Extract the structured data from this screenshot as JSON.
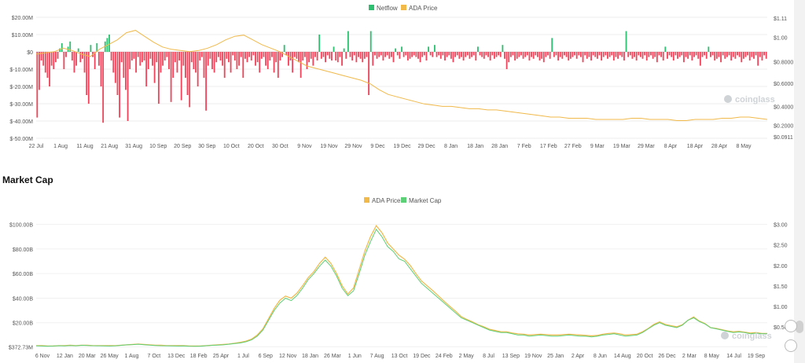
{
  "chart_data": [
    {
      "type": "bar",
      "legend_position": "top-center",
      "series": [
        {
          "name": "Netflow",
          "color": "#2fbf71"
        },
        {
          "name": "ADA Price",
          "color": "#f0b94a"
        }
      ],
      "y_left_ticks": [
        "$20.00M",
        "$10.00M",
        "$0",
        "$-10.00M",
        "$-20.00M",
        "$-30.00M",
        "$-40.00M",
        "$-50.00M"
      ],
      "y_left_range": [
        -50,
        20
      ],
      "y_right_ticks": [
        "$1.11",
        "$1.00",
        "$0.8000",
        "$0.6000",
        "$0.4000",
        "$0.2000",
        "$0.0911"
      ],
      "y_right_range": [
        0.0911,
        1.11
      ],
      "x_ticks": [
        "22 Jul",
        "1 Aug",
        "11 Aug",
        "21 Aug",
        "31 Aug",
        "10 Sep",
        "20 Sep",
        "30 Sep",
        "10 Oct",
        "20 Oct",
        "30 Oct",
        "9 Nov",
        "19 Nov",
        "29 Nov",
        "9 Dec",
        "19 Dec",
        "29 Dec",
        "8 Jan",
        "18 Jan",
        "28 Jan",
        "7 Feb",
        "17 Feb",
        "27 Feb",
        "9 Mar",
        "19 Mar",
        "29 Mar",
        "8 Apr",
        "18 Apr",
        "28 Apr",
        "8 May"
      ],
      "netflow_values_millions": [
        -38,
        -22,
        -5,
        -8,
        -12,
        -15,
        -20,
        -8,
        -10,
        -6,
        -4,
        2,
        5,
        -10,
        -3,
        3,
        6,
        -5,
        -12,
        -8,
        2,
        -6,
        -4,
        -12,
        -25,
        -30,
        4,
        -3,
        -10,
        5,
        -8,
        -20,
        -41,
        6,
        8,
        10,
        -5,
        -12,
        -18,
        -25,
        -38,
        -6,
        -15,
        -22,
        -40,
        -10,
        -5,
        -4,
        -12,
        -3,
        -8,
        -6,
        -5,
        -20,
        -10,
        -4,
        -8,
        -18,
        -6,
        -30,
        -12,
        -8,
        -5,
        -3,
        -10,
        -29,
        -15,
        -6,
        -12,
        -5,
        -28,
        -8,
        -15,
        -25,
        -32,
        -6,
        -10,
        -12,
        -20,
        -5,
        -3,
        -15,
        -34,
        -8,
        -4,
        -10,
        -12,
        -6,
        -3,
        -5,
        -8,
        -15,
        -4,
        -6,
        -12,
        -2,
        -5,
        -10,
        -8,
        -3,
        -15,
        -4,
        -6,
        -3,
        -5,
        -2,
        -8,
        -6,
        -12,
        -4,
        -3,
        -8,
        -10,
        -5,
        -3,
        -12,
        -6,
        -15,
        -5,
        -3,
        4,
        -2,
        -8,
        -5,
        -12,
        -3,
        -4,
        -6,
        -15,
        -5,
        -3,
        -10,
        -6,
        -4,
        -8,
        -3,
        -5,
        10,
        -4,
        -3,
        -6,
        -2,
        -4,
        -5,
        3,
        -5,
        -6,
        -3,
        -8,
        2,
        -4,
        12,
        -3,
        -5,
        -2,
        -6,
        -3,
        -4,
        -6,
        -4,
        -3,
        -25,
        12,
        -8,
        -2,
        -4,
        -3,
        -2,
        -5,
        -3,
        -2,
        -4,
        -3,
        -6,
        2,
        -2,
        -4,
        3,
        -3,
        -2,
        -5,
        -4,
        -3,
        -2,
        -3,
        -4,
        -6,
        -3,
        -2,
        -5,
        3,
        -2,
        -3,
        4,
        -3,
        -2,
        -4,
        -2,
        -5,
        -3,
        -2,
        -4,
        -6,
        -3,
        -2,
        -4,
        -3,
        -5,
        -3,
        -2,
        -4,
        -3,
        -2,
        -5,
        3,
        -2,
        -3,
        -4,
        -2,
        -3,
        -5,
        -2,
        -4,
        -3,
        -2,
        -3,
        4,
        -4,
        -10,
        -6,
        -3,
        -2,
        -5,
        -4,
        -3,
        -2,
        -4,
        -3,
        -2,
        -5,
        -3,
        -4,
        -2,
        -3,
        -5,
        -4,
        -6,
        -3,
        -2,
        -4,
        8,
        -3,
        -2,
        -5,
        -3,
        -4,
        -2,
        -3,
        -5,
        -4,
        -3,
        -2,
        -4,
        -2,
        -3,
        -6,
        -2,
        -4,
        -3,
        -5,
        -2,
        -3,
        -4,
        -2,
        -5,
        -3,
        -2,
        -4,
        -3,
        -2,
        -5,
        -3,
        -4,
        -2,
        -3,
        -5,
        12,
        -3,
        -2,
        -4,
        -3,
        -5,
        -2,
        -3,
        -4,
        -2,
        -5,
        -3,
        -2,
        -4,
        -3,
        -6,
        -2,
        -3,
        -5,
        3,
        -4,
        -2,
        -3,
        -5,
        -2,
        -4,
        -3,
        -2,
        -6,
        -3,
        -4,
        -2,
        -5,
        -3,
        -2,
        -4,
        -8,
        -3,
        -2,
        -4,
        3,
        -3,
        -2,
        -5,
        -4,
        -3,
        -6,
        -2,
        -4,
        -3,
        -2,
        -5,
        -3,
        -4,
        -2,
        -3,
        -6,
        -4,
        -3,
        -2,
        -5,
        -3,
        -4,
        -2,
        -8,
        -3,
        -5,
        -2,
        -4
      ],
      "price_values": [
        0.8,
        0.81,
        0.82,
        0.85,
        0.83,
        0.8,
        0.78,
        0.84,
        0.88,
        0.92,
        0.98,
        1.0,
        0.95,
        0.9,
        0.86,
        0.84,
        0.83,
        0.82,
        0.83,
        0.85,
        0.88,
        0.92,
        0.95,
        0.96,
        0.92,
        0.88,
        0.85,
        0.82,
        0.78,
        0.74,
        0.7,
        0.68,
        0.66,
        0.64,
        0.62,
        0.6,
        0.58,
        0.55,
        0.5,
        0.46,
        0.44,
        0.42,
        0.4,
        0.38,
        0.37,
        0.36,
        0.36,
        0.35,
        0.34,
        0.34,
        0.33,
        0.33,
        0.32,
        0.31,
        0.3,
        0.29,
        0.28,
        0.27,
        0.27,
        0.26,
        0.26,
        0.26,
        0.25,
        0.25,
        0.25,
        0.25,
        0.26,
        0.26,
        0.25,
        0.25,
        0.25,
        0.24,
        0.24,
        0.25,
        0.25,
        0.25,
        0.26,
        0.26,
        0.27,
        0.27,
        0.26,
        0.25
      ],
      "watermark": "coinglass"
    },
    {
      "type": "line",
      "title": "Market Cap",
      "legend_position": "top-center",
      "series": [
        {
          "name": "ADA Price",
          "color": "#f0b94a"
        },
        {
          "name": "Market Cap",
          "color": "#5ccf77"
        }
      ],
      "y_left_ticks": [
        "$100.00B",
        "$80.00B",
        "$60.00B",
        "$40.00B",
        "$20.00B",
        "$372.73M"
      ],
      "y_left_range": [
        0.37273,
        100
      ],
      "y_right_ticks": [
        "$3.00",
        "$2.50",
        "$2.00",
        "$1.50",
        "$1.00",
        "$0.50"
      ],
      "y_right_range": [
        0,
        3.0
      ],
      "x_ticks": [
        "6 Nov",
        "12 Jan",
        "20 Mar",
        "26 May",
        "1 Aug",
        "7 Oct",
        "13 Dec",
        "18 Feb",
        "25 Apr",
        "1 Jul",
        "6 Sep",
        "12 Nov",
        "18 Jan",
        "26 Mar",
        "1 Jun",
        "7 Aug",
        "13 Oct",
        "19 Dec",
        "24 Feb",
        "2 May",
        "8 Jul",
        "13 Sep",
        "19 Nov",
        "25 Jan",
        "2 Apr",
        "8 Jun",
        "14 Aug",
        "20 Oct",
        "26 Dec",
        "2 Mar",
        "8 May",
        "14 Jul",
        "19 Sep"
      ],
      "market_cap_values_billions": [
        1.2,
        1.0,
        0.9,
        1.0,
        1.3,
        1.1,
        1.4,
        1.2,
        1.6,
        1.5,
        1.3,
        1.2,
        1.1,
        1.0,
        1.2,
        1.6,
        2.0,
        2.2,
        2.5,
        2.1,
        1.7,
        1.5,
        1.3,
        1.2,
        1.1,
        1.0,
        1.1,
        0.9,
        0.8,
        0.9,
        1.3,
        1.6,
        1.8,
        2.0,
        2.5,
        3.0,
        3.5,
        4.5,
        6.0,
        9,
        14,
        22,
        30,
        36,
        40,
        38,
        42,
        48,
        55,
        60,
        66,
        71,
        66,
        58,
        48,
        42,
        46,
        60,
        75,
        86,
        96,
        90,
        82,
        78,
        72,
        70,
        64,
        58,
        52,
        48,
        44,
        40,
        36,
        32,
        28,
        24,
        22,
        20,
        18,
        16,
        14,
        13,
        12,
        12,
        11,
        10,
        10,
        9,
        9.5,
        10,
        9.5,
        9,
        9,
        9.5,
        10,
        9.5,
        9,
        9,
        8.5,
        9,
        10,
        10.5,
        11,
        10,
        9,
        9.5,
        10,
        12,
        15,
        18,
        20,
        18,
        17,
        16,
        18,
        22,
        24,
        21,
        19,
        16,
        15,
        14,
        13,
        12,
        12.5,
        12,
        11,
        11.5,
        11,
        11
      ],
      "price_values_usd": [
        0.04,
        0.04,
        0.03,
        0.03,
        0.04,
        0.04,
        0.05,
        0.04,
        0.05,
        0.05,
        0.04,
        0.04,
        0.04,
        0.04,
        0.04,
        0.05,
        0.06,
        0.07,
        0.08,
        0.07,
        0.06,
        0.05,
        0.05,
        0.04,
        0.04,
        0.04,
        0.04,
        0.03,
        0.03,
        0.03,
        0.04,
        0.05,
        0.06,
        0.07,
        0.08,
        0.1,
        0.12,
        0.15,
        0.2,
        0.3,
        0.45,
        0.7,
        0.95,
        1.15,
        1.25,
        1.2,
        1.32,
        1.5,
        1.7,
        1.85,
        2.05,
        2.2,
        2.05,
        1.8,
        1.5,
        1.3,
        1.45,
        1.9,
        2.35,
        2.7,
        2.97,
        2.8,
        2.55,
        2.4,
        2.25,
        2.15,
        2.0,
        1.8,
        1.62,
        1.5,
        1.38,
        1.25,
        1.12,
        1.0,
        0.88,
        0.75,
        0.68,
        0.62,
        0.55,
        0.5,
        0.44,
        0.41,
        0.38,
        0.38,
        0.35,
        0.33,
        0.32,
        0.3,
        0.31,
        0.32,
        0.31,
        0.3,
        0.3,
        0.31,
        0.32,
        0.31,
        0.3,
        0.29,
        0.28,
        0.29,
        0.32,
        0.34,
        0.35,
        0.33,
        0.3,
        0.31,
        0.32,
        0.38,
        0.46,
        0.56,
        0.62,
        0.56,
        0.53,
        0.5,
        0.55,
        0.66,
        0.74,
        0.64,
        0.58,
        0.48,
        0.46,
        0.43,
        0.4,
        0.38,
        0.39,
        0.37,
        0.35,
        0.36,
        0.34,
        0.34
      ],
      "watermark": "coinglass"
    }
  ]
}
